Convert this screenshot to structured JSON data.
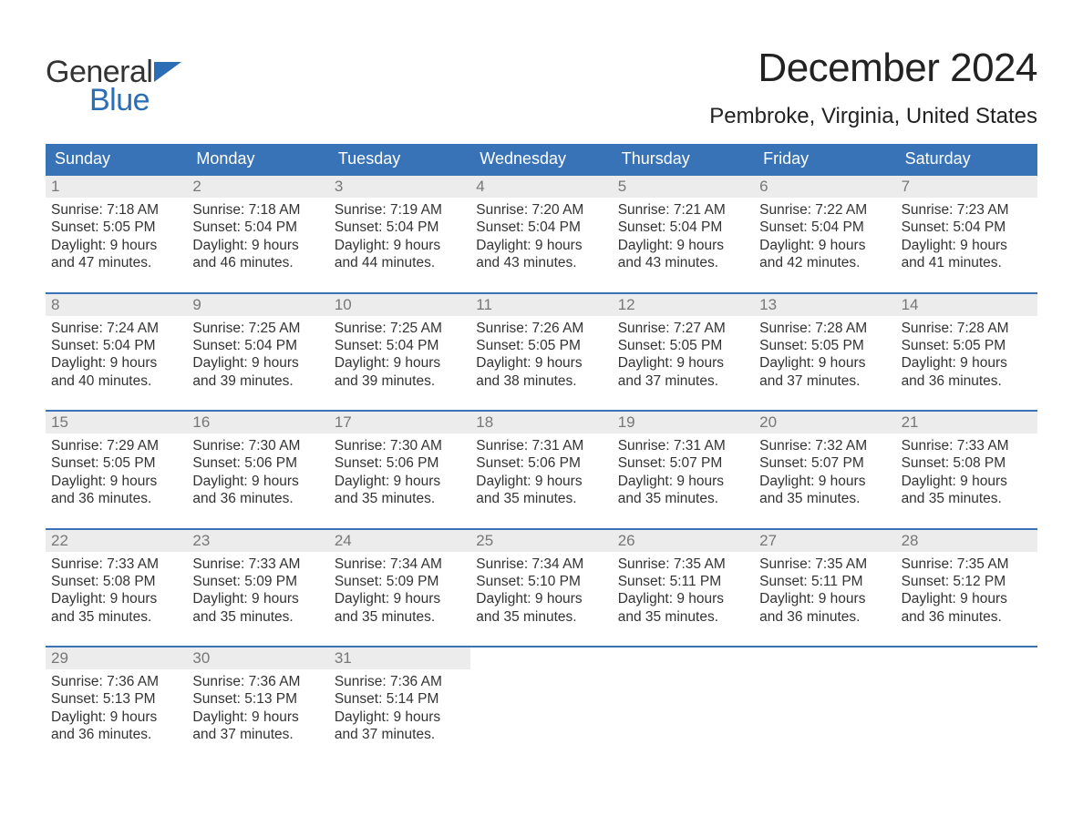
{
  "logo": {
    "line1": "General",
    "line2": "Blue"
  },
  "title": "December 2024",
  "location": "Pembroke, Virginia, United States",
  "colors": {
    "header_bg": "#3873b8",
    "header_text": "#ffffff",
    "daynum_bg": "#ececec",
    "daynum_text": "#777777",
    "body_text": "#333333",
    "border": "#3873b8",
    "logo_blue": "#2b6eb5"
  },
  "days_of_week": [
    "Sunday",
    "Monday",
    "Tuesday",
    "Wednesday",
    "Thursday",
    "Friday",
    "Saturday"
  ],
  "weeks": [
    [
      {
        "n": "1",
        "sunrise": "Sunrise: 7:18 AM",
        "sunset": "Sunset: 5:05 PM",
        "day1": "Daylight: 9 hours",
        "day2": "and 47 minutes."
      },
      {
        "n": "2",
        "sunrise": "Sunrise: 7:18 AM",
        "sunset": "Sunset: 5:04 PM",
        "day1": "Daylight: 9 hours",
        "day2": "and 46 minutes."
      },
      {
        "n": "3",
        "sunrise": "Sunrise: 7:19 AM",
        "sunset": "Sunset: 5:04 PM",
        "day1": "Daylight: 9 hours",
        "day2": "and 44 minutes."
      },
      {
        "n": "4",
        "sunrise": "Sunrise: 7:20 AM",
        "sunset": "Sunset: 5:04 PM",
        "day1": "Daylight: 9 hours",
        "day2": "and 43 minutes."
      },
      {
        "n": "5",
        "sunrise": "Sunrise: 7:21 AM",
        "sunset": "Sunset: 5:04 PM",
        "day1": "Daylight: 9 hours",
        "day2": "and 43 minutes."
      },
      {
        "n": "6",
        "sunrise": "Sunrise: 7:22 AM",
        "sunset": "Sunset: 5:04 PM",
        "day1": "Daylight: 9 hours",
        "day2": "and 42 minutes."
      },
      {
        "n": "7",
        "sunrise": "Sunrise: 7:23 AM",
        "sunset": "Sunset: 5:04 PM",
        "day1": "Daylight: 9 hours",
        "day2": "and 41 minutes."
      }
    ],
    [
      {
        "n": "8",
        "sunrise": "Sunrise: 7:24 AM",
        "sunset": "Sunset: 5:04 PM",
        "day1": "Daylight: 9 hours",
        "day2": "and 40 minutes."
      },
      {
        "n": "9",
        "sunrise": "Sunrise: 7:25 AM",
        "sunset": "Sunset: 5:04 PM",
        "day1": "Daylight: 9 hours",
        "day2": "and 39 minutes."
      },
      {
        "n": "10",
        "sunrise": "Sunrise: 7:25 AM",
        "sunset": "Sunset: 5:04 PM",
        "day1": "Daylight: 9 hours",
        "day2": "and 39 minutes."
      },
      {
        "n": "11",
        "sunrise": "Sunrise: 7:26 AM",
        "sunset": "Sunset: 5:05 PM",
        "day1": "Daylight: 9 hours",
        "day2": "and 38 minutes."
      },
      {
        "n": "12",
        "sunrise": "Sunrise: 7:27 AM",
        "sunset": "Sunset: 5:05 PM",
        "day1": "Daylight: 9 hours",
        "day2": "and 37 minutes."
      },
      {
        "n": "13",
        "sunrise": "Sunrise: 7:28 AM",
        "sunset": "Sunset: 5:05 PM",
        "day1": "Daylight: 9 hours",
        "day2": "and 37 minutes."
      },
      {
        "n": "14",
        "sunrise": "Sunrise: 7:28 AM",
        "sunset": "Sunset: 5:05 PM",
        "day1": "Daylight: 9 hours",
        "day2": "and 36 minutes."
      }
    ],
    [
      {
        "n": "15",
        "sunrise": "Sunrise: 7:29 AM",
        "sunset": "Sunset: 5:05 PM",
        "day1": "Daylight: 9 hours",
        "day2": "and 36 minutes."
      },
      {
        "n": "16",
        "sunrise": "Sunrise: 7:30 AM",
        "sunset": "Sunset: 5:06 PM",
        "day1": "Daylight: 9 hours",
        "day2": "and 36 minutes."
      },
      {
        "n": "17",
        "sunrise": "Sunrise: 7:30 AM",
        "sunset": "Sunset: 5:06 PM",
        "day1": "Daylight: 9 hours",
        "day2": "and 35 minutes."
      },
      {
        "n": "18",
        "sunrise": "Sunrise: 7:31 AM",
        "sunset": "Sunset: 5:06 PM",
        "day1": "Daylight: 9 hours",
        "day2": "and 35 minutes."
      },
      {
        "n": "19",
        "sunrise": "Sunrise: 7:31 AM",
        "sunset": "Sunset: 5:07 PM",
        "day1": "Daylight: 9 hours",
        "day2": "and 35 minutes."
      },
      {
        "n": "20",
        "sunrise": "Sunrise: 7:32 AM",
        "sunset": "Sunset: 5:07 PM",
        "day1": "Daylight: 9 hours",
        "day2": "and 35 minutes."
      },
      {
        "n": "21",
        "sunrise": "Sunrise: 7:33 AM",
        "sunset": "Sunset: 5:08 PM",
        "day1": "Daylight: 9 hours",
        "day2": "and 35 minutes."
      }
    ],
    [
      {
        "n": "22",
        "sunrise": "Sunrise: 7:33 AM",
        "sunset": "Sunset: 5:08 PM",
        "day1": "Daylight: 9 hours",
        "day2": "and 35 minutes."
      },
      {
        "n": "23",
        "sunrise": "Sunrise: 7:33 AM",
        "sunset": "Sunset: 5:09 PM",
        "day1": "Daylight: 9 hours",
        "day2": "and 35 minutes."
      },
      {
        "n": "24",
        "sunrise": "Sunrise: 7:34 AM",
        "sunset": "Sunset: 5:09 PM",
        "day1": "Daylight: 9 hours",
        "day2": "and 35 minutes."
      },
      {
        "n": "25",
        "sunrise": "Sunrise: 7:34 AM",
        "sunset": "Sunset: 5:10 PM",
        "day1": "Daylight: 9 hours",
        "day2": "and 35 minutes."
      },
      {
        "n": "26",
        "sunrise": "Sunrise: 7:35 AM",
        "sunset": "Sunset: 5:11 PM",
        "day1": "Daylight: 9 hours",
        "day2": "and 35 minutes."
      },
      {
        "n": "27",
        "sunrise": "Sunrise: 7:35 AM",
        "sunset": "Sunset: 5:11 PM",
        "day1": "Daylight: 9 hours",
        "day2": "and 36 minutes."
      },
      {
        "n": "28",
        "sunrise": "Sunrise: 7:35 AM",
        "sunset": "Sunset: 5:12 PM",
        "day1": "Daylight: 9 hours",
        "day2": "and 36 minutes."
      }
    ],
    [
      {
        "n": "29",
        "sunrise": "Sunrise: 7:36 AM",
        "sunset": "Sunset: 5:13 PM",
        "day1": "Daylight: 9 hours",
        "day2": "and 36 minutes."
      },
      {
        "n": "30",
        "sunrise": "Sunrise: 7:36 AM",
        "sunset": "Sunset: 5:13 PM",
        "day1": "Daylight: 9 hours",
        "day2": "and 37 minutes."
      },
      {
        "n": "31",
        "sunrise": "Sunrise: 7:36 AM",
        "sunset": "Sunset: 5:14 PM",
        "day1": "Daylight: 9 hours",
        "day2": "and 37 minutes."
      },
      {
        "empty": true
      },
      {
        "empty": true
      },
      {
        "empty": true
      },
      {
        "empty": true
      }
    ]
  ]
}
